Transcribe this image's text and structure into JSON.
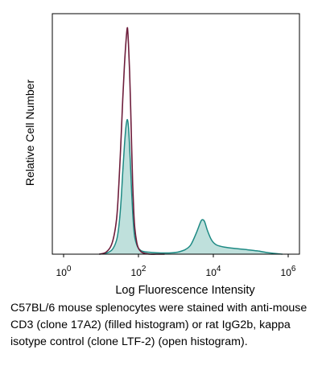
{
  "chart_data": {
    "type": "area",
    "title": "",
    "xlabel": "Log Fluorescence Intensity",
    "ylabel": "Relative Cell Number",
    "x_scale": "log10",
    "xlim": [
      0.5,
      2000000
    ],
    "ylim": [
      0,
      100
    ],
    "x_ticks": [
      {
        "value": 1,
        "base": "10",
        "exp": "0"
      },
      {
        "value": 100,
        "base": "10",
        "exp": "2"
      },
      {
        "value": 10000,
        "base": "10",
        "exp": "4"
      },
      {
        "value": 1000000,
        "base": "10",
        "exp": "6"
      }
    ],
    "grid": false,
    "legend": null,
    "series": [
      {
        "style": "filled histogram",
        "fill": "#bfe0dc",
        "stroke": "#1e8a84",
        "x": [
          9,
          14,
          20,
          26,
          30,
          34,
          38,
          42,
          46,
          50,
          54,
          58,
          62,
          66,
          70,
          75,
          80,
          90,
          100,
          115,
          130,
          150,
          200,
          300,
          500,
          800,
          1200,
          1800,
          2500,
          3500,
          4500,
          5000,
          5800,
          7000,
          9000,
          12000,
          20000,
          40000,
          70000,
          150000,
          300000,
          700000
        ],
        "y": [
          0,
          0.5,
          2,
          6,
          12,
          22,
          35,
          46,
          54,
          57.5,
          54.5,
          46,
          36,
          26,
          18,
          11,
          7,
          4,
          2.5,
          1.6,
          1.2,
          1,
          0.8,
          0.6,
          0.5,
          0.6,
          1,
          2,
          4,
          9,
          13.5,
          14.7,
          14,
          10,
          6,
          4,
          3,
          2.4,
          2,
          1.4,
          0.6,
          0
        ]
      },
      {
        "style": "open histogram",
        "stroke": "#6e1e3c",
        "x": [
          9,
          14,
          20,
          26,
          30,
          34,
          38,
          42,
          46,
          50,
          52,
          54,
          58,
          62,
          66,
          70,
          75,
          80,
          90,
          100,
          115,
          130,
          150,
          200,
          300,
          500
        ],
        "y": [
          0,
          1,
          5,
          15,
          30,
          48,
          66,
          80,
          90,
          96.5,
          95,
          90,
          78,
          62,
          45,
          30,
          18,
          11,
          5,
          2.5,
          1.2,
          0.6,
          0.3,
          0,
          0,
          0
        ]
      }
    ]
  },
  "caption": {
    "lines": [
      "C57BL/6 mouse splenocytes were stained with anti-mouse",
      "CD3 (clone 17A2) (filled histogram) or rat IgG2b, kappa",
      "isotype control (clone LTF-2) (open histogram)."
    ]
  }
}
